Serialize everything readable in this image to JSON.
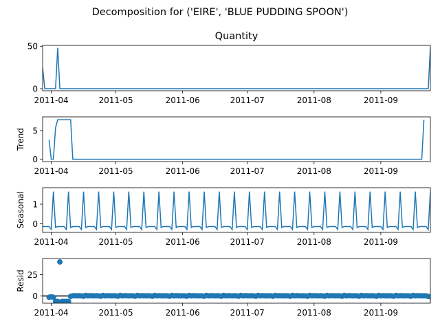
{
  "figure": {
    "suptitle": "Decomposition for ('EIRE', 'BLUE PUDDING SPOON')"
  },
  "style": {
    "line_color": "#1f77b4",
    "axis_color": "#000000",
    "zero_line_color": "#000000"
  },
  "chart_data": [
    {
      "type": "line",
      "title": "Quantity",
      "ylabel": "",
      "x_range": [
        "2011-03-28",
        "2011-09-24"
      ],
      "ylim": [
        -2.4,
        51
      ],
      "yticks": [
        0,
        50
      ],
      "xticks": [
        "2011-04",
        "2011-05",
        "2011-06",
        "2011-07",
        "2011-08",
        "2011-09"
      ],
      "series": [
        {
          "points": [
            [
              "2011-03-28",
              25
            ],
            [
              "2011-03-29",
              0
            ],
            [
              "2011-04-03",
              0
            ],
            [
              "2011-04-04",
              48
            ],
            [
              "2011-04-05",
              0
            ],
            [
              "2011-09-23",
              0
            ],
            [
              "2011-09-24",
              48
            ]
          ]
        }
      ]
    },
    {
      "type": "line",
      "title": "",
      "ylabel": "Trend",
      "x_range": [
        "2011-03-28",
        "2011-09-24"
      ],
      "ylim": [
        -0.4,
        7.4
      ],
      "yticks": [
        0,
        5
      ],
      "xticks": [
        "2011-04",
        "2011-05",
        "2011-06",
        "2011-07",
        "2011-08",
        "2011-09"
      ],
      "series": [
        {
          "points": [
            [
              "2011-03-31",
              3.4
            ],
            [
              "2011-04-01",
              0
            ],
            [
              "2011-04-02",
              0
            ],
            [
              "2011-04-03",
              5.5
            ],
            [
              "2011-04-04",
              6.9
            ],
            [
              "2011-04-10",
              6.9
            ],
            [
              "2011-04-11",
              0
            ],
            [
              "2011-09-20",
              0
            ],
            [
              "2011-09-21",
              6.9
            ]
          ]
        }
      ]
    },
    {
      "type": "line",
      "title": "",
      "ylabel": "Seasonal",
      "x_range": [
        "2011-03-28",
        "2011-09-24"
      ],
      "ylim": [
        -0.45,
        1.85
      ],
      "yticks": [
        0,
        1
      ],
      "xticks": [
        "2011-04",
        "2011-05",
        "2011-06",
        "2011-07",
        "2011-08",
        "2011-09"
      ],
      "weekly_pattern": [
        -0.15,
        -0.15,
        -0.15,
        -0.15,
        -0.3,
        1.65,
        -0.2
      ],
      "pattern_start": "2011-03-28",
      "pattern_end": "2011-09-24",
      "peak_weekday_note": "peaks every 7 days"
    },
    {
      "type": "scatter",
      "title": "",
      "ylabel": "Resid",
      "x_range": [
        "2011-03-28",
        "2011-09-24"
      ],
      "ylim": [
        -8.5,
        44
      ],
      "yticks": [
        0,
        25
      ],
      "xticks": [
        "2011-04",
        "2011-05",
        "2011-06",
        "2011-07",
        "2011-08",
        "2011-09"
      ],
      "zero_line": true,
      "series": [
        {
          "start": "2011-03-31",
          "values": [
            -1.5,
            -1,
            -1.5,
            -6.5,
            -6.5,
            40,
            -6.5,
            -6.5,
            -6.5,
            -6.5,
            -0.5,
            0.2,
            0.3,
            0.1,
            0.2,
            0.1,
            -0.3,
            0.6,
            0.1,
            0.3,
            0.2,
            0.1,
            0.2,
            0.1,
            -0.3,
            0.6,
            0.1,
            0.3,
            0.2,
            0.1,
            0.2,
            0.1,
            -0.3,
            0.6,
            0.1,
            0.3,
            0.2,
            0.1,
            0.2,
            0.1,
            -0.3,
            0.6,
            0.1,
            0.3,
            0.2,
            0.1,
            0.2,
            0.1,
            -0.3,
            0.6,
            0.1,
            0.3,
            0.2,
            0.1,
            0.2,
            0.1,
            -0.3,
            0.6,
            0.1,
            0.3,
            0.2,
            0.1,
            0.2,
            0.1,
            -0.3,
            0.6,
            0.1,
            0.3,
            0.2,
            0.1,
            0.2,
            0.1,
            -0.3,
            0.6,
            0.1,
            0.3,
            0.2,
            0.1,
            0.2,
            0.1,
            -0.3,
            0.6,
            0.1,
            0.3,
            0.2,
            0.1,
            0.2,
            0.1,
            -0.3,
            0.6,
            0.1,
            0.3,
            0.2,
            0.1,
            0.2,
            0.1,
            -0.3,
            0.6,
            0.1,
            0.3,
            0.2,
            0.1,
            0.2,
            0.1,
            -0.3,
            0.6,
            0.1,
            0.3,
            0.2,
            0.1,
            0.2,
            0.1,
            -0.3,
            0.6,
            0.1,
            0.3,
            0.2,
            0.1,
            0.2,
            0.1,
            -0.3,
            0.6,
            0.1,
            0.3,
            0.2,
            0.1,
            0.2,
            0.1,
            -0.3,
            0.6,
            0.1,
            0.3,
            0.2,
            0.1,
            0.2,
            0.1,
            -0.3,
            0.6,
            0.1,
            0.3,
            0.2,
            0.1,
            0.2,
            0.1,
            -0.3,
            0.6,
            0.1,
            0.3,
            0.2,
            0.1,
            0.2,
            0.1,
            -0.3,
            0.6,
            0.1,
            0.3,
            0.2,
            0.1,
            0.2,
            0.1,
            -0.3,
            0.6,
            0.1,
            0.3,
            0.2,
            0.1,
            0.2,
            0.1,
            -0.3,
            0.6,
            0.1,
            0.3,
            0.2,
            0.1,
            0.2,
            0.1,
            -0.5,
            -1,
            -6.5
          ]
        }
      ]
    }
  ]
}
